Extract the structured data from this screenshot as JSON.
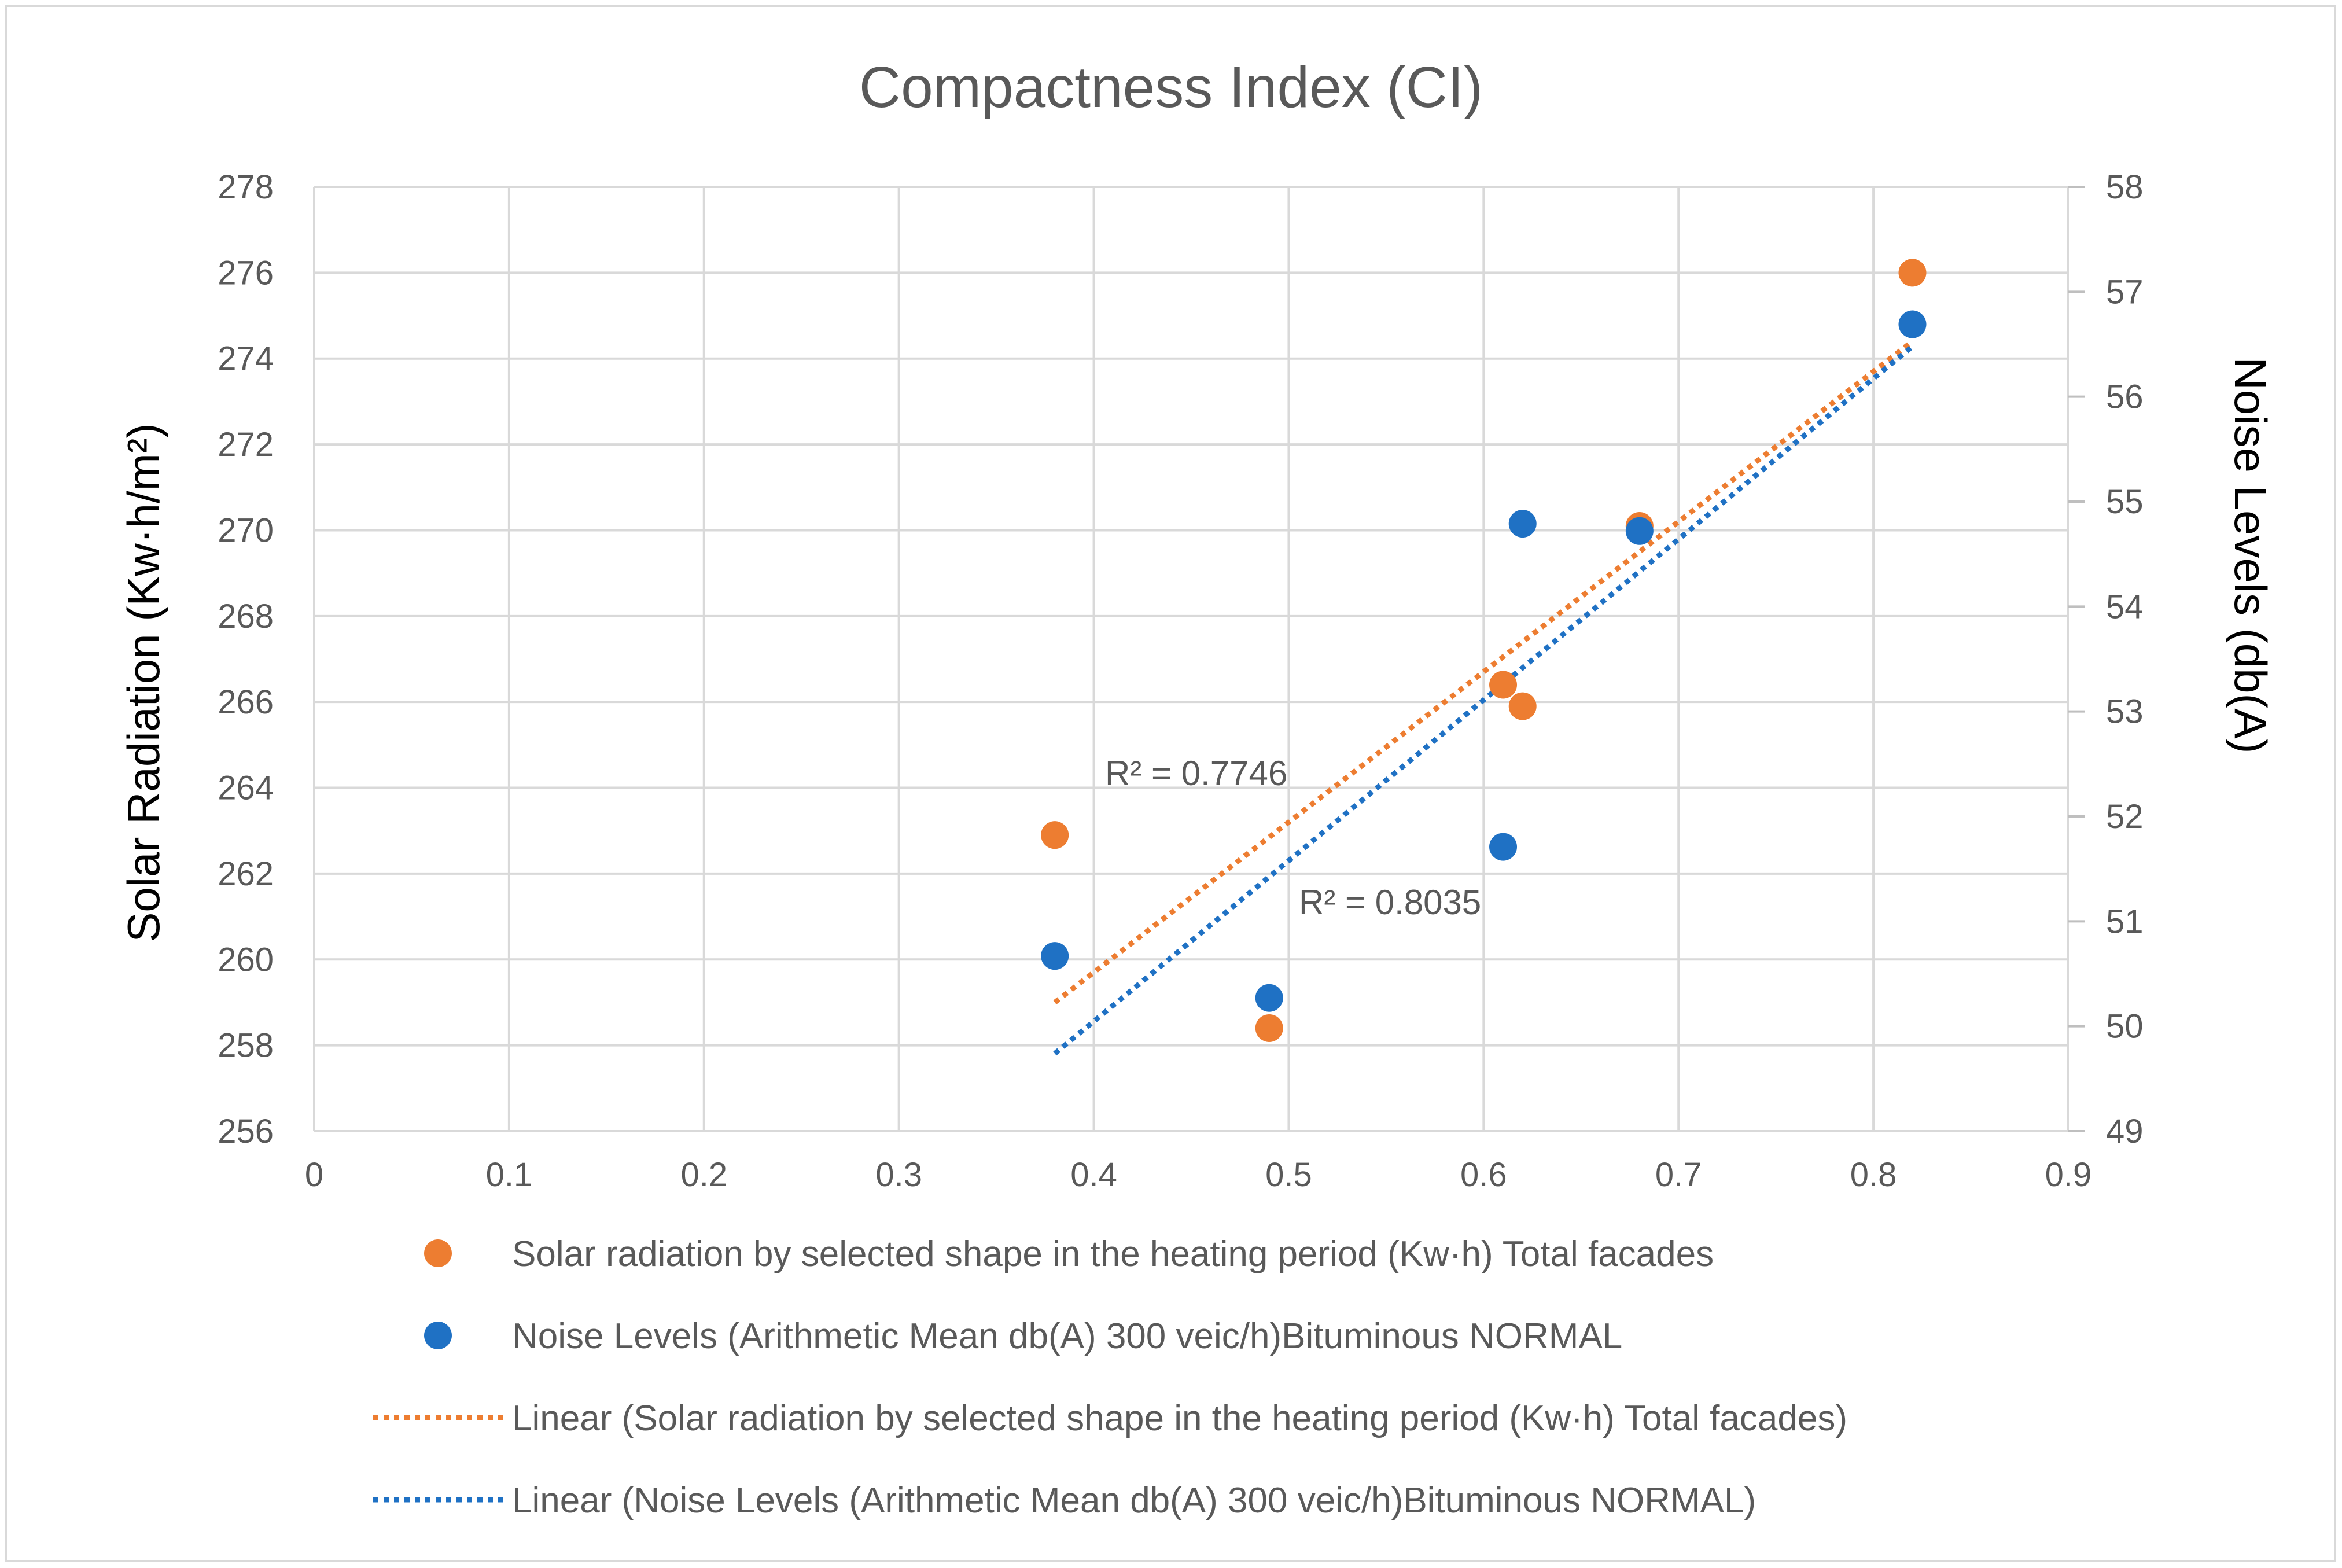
{
  "chart_data": {
    "type": "scatter",
    "title": "Compactness Index (CI)",
    "xlim": [
      0,
      0.9
    ],
    "x_ticks": [
      "0",
      "0.1",
      "0.2",
      "0.3",
      "0.4",
      "0.5",
      "0.6",
      "0.7",
      "0.8",
      "0.9"
    ],
    "x_tick_values": [
      0,
      0.1,
      0.2,
      0.3,
      0.4,
      0.5,
      0.6,
      0.7,
      0.8,
      0.9
    ],
    "ylabel_left": "Solar Radiation (Kw·h/m²)",
    "ylim_left": [
      256,
      278
    ],
    "y_ticks_left": [
      "256",
      "258",
      "260",
      "262",
      "264",
      "266",
      "268",
      "270",
      "272",
      "274",
      "276",
      "278"
    ],
    "y_tick_values_left": [
      256,
      258,
      260,
      262,
      264,
      266,
      268,
      270,
      272,
      274,
      276,
      278
    ],
    "ylabel_right": "Noise Levels (db(A)",
    "ylim_right": [
      49,
      58
    ],
    "y_ticks_right": [
      "49",
      "50",
      "51",
      "52",
      "53",
      "54",
      "55",
      "56",
      "57",
      "58"
    ],
    "y_tick_values_right": [
      49,
      50,
      51,
      52,
      53,
      54,
      55,
      56,
      57,
      58
    ],
    "grid": true,
    "legend_position": "bottom",
    "series": [
      {
        "name": "Solar radiation by selected shape in the heating period (Kw·h) Total facades",
        "axis": "left",
        "color": "#ED7D31",
        "points": [
          {
            "x": 0.38,
            "y": 262.9
          },
          {
            "x": 0.49,
            "y": 258.4
          },
          {
            "x": 0.61,
            "y": 266.4
          },
          {
            "x": 0.62,
            "y": 265.9
          },
          {
            "x": 0.68,
            "y": 270.1
          },
          {
            "x": 0.82,
            "y": 276.0
          }
        ],
        "trendline": {
          "name": "Linear (Solar radiation by selected shape in the heating period (Kw·h) Total facades)",
          "x_range": [
            0.38,
            0.82
          ],
          "y_start": 259.0,
          "y_end": 274.4,
          "r2_label": "R² = 0.7746"
        }
      },
      {
        "name": "Noise Levels (Arithmetic Mean db(A) 300 veic/h)Bituminous NORMAL",
        "axis": "right",
        "color": "#1F71C4",
        "points": [
          {
            "x": 0.38,
            "y": 50.67
          },
          {
            "x": 0.49,
            "y": 50.27
          },
          {
            "x": 0.61,
            "y": 51.71
          },
          {
            "x": 0.62,
            "y": 54.79
          },
          {
            "x": 0.68,
            "y": 54.72
          },
          {
            "x": 0.82,
            "y": 56.69
          }
        ],
        "trendline": {
          "name": "Linear (Noise Levels (Arithmetic Mean db(A) 300 veic/h)Bituminous NORMAL)",
          "x_range": [
            0.38,
            0.82
          ],
          "y_start": 49.74,
          "y_end": 56.48,
          "r2_label": "R² = 0.8035"
        }
      }
    ]
  }
}
